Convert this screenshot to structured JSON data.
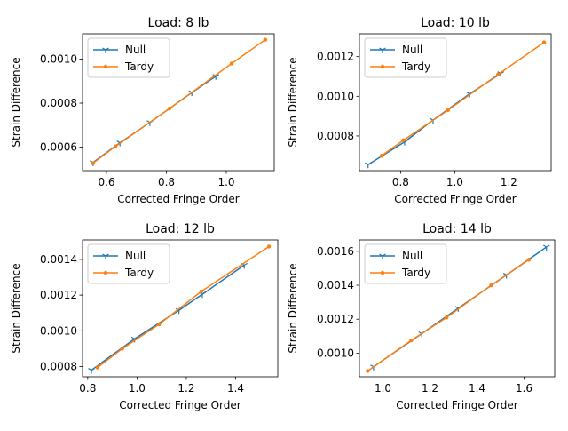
{
  "colors": {
    "null": "#1f77b4",
    "tardy": "#ff7f0e"
  },
  "chart_data": [
    {
      "type": "line",
      "title": "Load: 8 lb",
      "xlabel": "Corrected Fringe Order",
      "ylabel": "Strain Difference",
      "xlim": [
        0.52,
        1.16
      ],
      "ylim": [
        0.000493,
        0.001115
      ],
      "xticks": [
        0.6,
        0.8,
        1.0
      ],
      "xtick_labels": [
        "0.6",
        "0.8",
        "1.0"
      ],
      "yticks": [
        0.0006,
        0.0008,
        0.001
      ],
      "ytick_labels": [
        "0.0006",
        "0.0008",
        "0.0010"
      ],
      "legend": "upper-left",
      "series": [
        {
          "name": "Null",
          "marker": "tri_down",
          "x": [
            0.555,
            0.645,
            0.745,
            0.885,
            0.965
          ],
          "y": [
            0.00053,
            0.00062,
            0.000712,
            0.000848,
            0.000922
          ]
        },
        {
          "name": "Tardy",
          "marker": "circle",
          "x": [
            0.555,
            0.63,
            0.81,
            1.018,
            1.13
          ],
          "y": [
            0.000527,
            0.000603,
            0.000775,
            0.00098,
            0.001088
          ]
        }
      ]
    },
    {
      "type": "line",
      "title": "Load: 10 lb",
      "xlabel": "Corrected Fringe Order",
      "ylabel": "Strain Difference",
      "xlim": [
        0.648,
        1.356
      ],
      "ylim": [
        0.000625,
        0.001315
      ],
      "xticks": [
        0.8,
        1.0,
        1.2
      ],
      "xtick_labels": [
        "0.8",
        "1.0",
        "1.2"
      ],
      "yticks": [
        0.0008,
        0.001,
        0.0012
      ],
      "ytick_labels": [
        "0.0008",
        "0.0010",
        "0.0012"
      ],
      "legend": "upper-left",
      "series": [
        {
          "name": "Null",
          "marker": "tri_down",
          "x": [
            0.68,
            0.815,
            0.92,
            1.055,
            1.17
          ],
          "y": [
            0.000655,
            0.00077,
            0.00088,
            0.001012,
            0.001115
          ]
        },
        {
          "name": "Tardy",
          "marker": "circle",
          "x": [
            0.73,
            0.81,
            0.975,
            1.16,
            1.33
          ],
          "y": [
            0.0007,
            0.000778,
            0.00093,
            0.00111,
            0.001272
          ]
        }
      ]
    },
    {
      "type": "line",
      "title": "Load: 12 lb",
      "xlabel": "Corrected Fringe Order",
      "ylabel": "Strain Difference",
      "xlim": [
        0.779,
        1.571
      ],
      "ylim": [
        0.000743,
        0.001509
      ],
      "xticks": [
        0.8,
        1.0,
        1.2,
        1.4
      ],
      "xtick_labels": [
        "0.8",
        "1.0",
        "1.2",
        "1.4"
      ],
      "yticks": [
        0.0008,
        0.001,
        0.0012,
        0.0014
      ],
      "ytick_labels": [
        "0.0008",
        "0.0010",
        "0.0012",
        "0.0014"
      ],
      "legend": "upper-left",
      "series": [
        {
          "name": "Null",
          "marker": "tri_down",
          "x": [
            0.815,
            0.99,
            1.17,
            1.265,
            1.435
          ],
          "y": [
            0.00078,
            0.000955,
            0.001115,
            0.001205,
            0.001368
          ]
        },
        {
          "name": "Tardy",
          "marker": "circle",
          "x": [
            0.84,
            0.94,
            1.09,
            1.26,
            1.535
          ],
          "y": [
            0.000795,
            0.0009,
            0.001037,
            0.00122,
            0.001472
          ]
        }
      ]
    },
    {
      "type": "line",
      "title": "Load: 14 lb",
      "xlabel": "Corrected Fringe Order",
      "ylabel": "Strain Difference",
      "xlim": [
        0.9,
        1.73
      ],
      "ylim": [
        0.000861,
        0.001667
      ],
      "xticks": [
        1.0,
        1.2,
        1.4,
        1.6
      ],
      "xtick_labels": [
        "1.0",
        "1.2",
        "1.4",
        "1.6"
      ],
      "yticks": [
        0.001,
        0.0012,
        0.0014,
        0.0016
      ],
      "ytick_labels": [
        "0.0010",
        "0.0012",
        "0.0014",
        "0.0016"
      ],
      "legend": "upper-left",
      "series": [
        {
          "name": "Null",
          "marker": "tri_down",
          "x": [
            0.96,
            1.165,
            1.32,
            1.525,
            1.695
          ],
          "y": [
            0.00092,
            0.001115,
            0.001265,
            0.00146,
            0.001625
          ]
        },
        {
          "name": "Tardy",
          "marker": "circle",
          "x": [
            0.935,
            1.12,
            1.27,
            1.46,
            1.62
          ],
          "y": [
            0.000895,
            0.001075,
            0.00121,
            0.0014,
            0.00155
          ]
        }
      ]
    }
  ]
}
